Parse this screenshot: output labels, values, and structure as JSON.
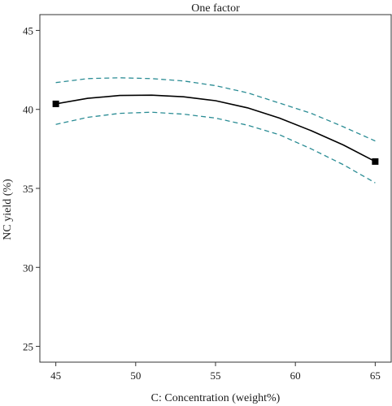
{
  "chart_data": {
    "type": "line",
    "title": "One factor",
    "xlabel": "C: Concentration (weight%)",
    "ylabel": "NC yield (%)",
    "xlim": [
      44,
      66
    ],
    "ylim": [
      24,
      46
    ],
    "x_ticks": [
      "45",
      "50",
      "55",
      "60",
      "65"
    ],
    "y_ticks": [
      "25",
      "30",
      "35",
      "40",
      "45"
    ],
    "grid": false,
    "series": [
      {
        "role": "fit",
        "style": "solid",
        "color": "#000000",
        "x": [
          45,
          47,
          49,
          51,
          53,
          55,
          57,
          59,
          61,
          63,
          65
        ],
        "y": [
          40.35,
          40.7,
          40.88,
          40.9,
          40.8,
          40.55,
          40.1,
          39.45,
          38.65,
          37.75,
          36.7
        ]
      },
      {
        "role": "upper confidence band",
        "style": "dashed",
        "color": "#2a8c94",
        "x": [
          45,
          47,
          49,
          51,
          53,
          55,
          57,
          59,
          61,
          63,
          65
        ],
        "y": [
          41.7,
          41.95,
          42.0,
          41.95,
          41.8,
          41.5,
          41.05,
          40.4,
          39.75,
          38.9,
          38.0
        ]
      },
      {
        "role": "lower confidence band",
        "style": "dashed",
        "color": "#2a8c94",
        "x": [
          45,
          47,
          49,
          51,
          53,
          55,
          57,
          59,
          61,
          63,
          65
        ],
        "y": [
          39.05,
          39.5,
          39.75,
          39.82,
          39.7,
          39.45,
          39.0,
          38.4,
          37.5,
          36.5,
          35.35
        ]
      }
    ],
    "points": {
      "marker": "square",
      "color": "#000000",
      "x": [
        45,
        65
      ],
      "y": [
        40.35,
        36.7
      ]
    }
  }
}
